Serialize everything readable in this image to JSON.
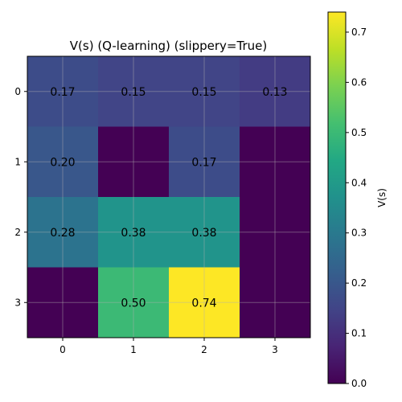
{
  "chart_data": {
    "type": "heatmap",
    "title": "V(s) (Q-learning) (slippery=True)",
    "x_ticks": [
      "0",
      "1",
      "2",
      "3"
    ],
    "y_ticks": [
      "0",
      "1",
      "2",
      "3"
    ],
    "values": [
      [
        0.17,
        0.15,
        0.15,
        0.13
      ],
      [
        0.2,
        0.0,
        0.17,
        0.0
      ],
      [
        0.28,
        0.38,
        0.38,
        0.0
      ],
      [
        0.0,
        0.5,
        0.74,
        0.0
      ]
    ],
    "cell_labels": [
      [
        "0.17",
        "0.15",
        "0.15",
        "0.13"
      ],
      [
        "0.20",
        "",
        "0.17",
        ""
      ],
      [
        "0.28",
        "0.38",
        "0.38",
        ""
      ],
      [
        "",
        "0.50",
        "0.74",
        ""
      ]
    ],
    "colorbar": {
      "label": "V(s)",
      "range": [
        0.0,
        0.74
      ],
      "ticks": [
        0.0,
        0.1,
        0.2,
        0.3,
        0.4,
        0.5,
        0.6,
        0.7
      ],
      "tick_labels": [
        "0.0",
        "0.1",
        "0.2",
        "0.3",
        "0.4",
        "0.5",
        "0.6",
        "0.7"
      ],
      "colormap": "viridis"
    },
    "grid": true
  }
}
